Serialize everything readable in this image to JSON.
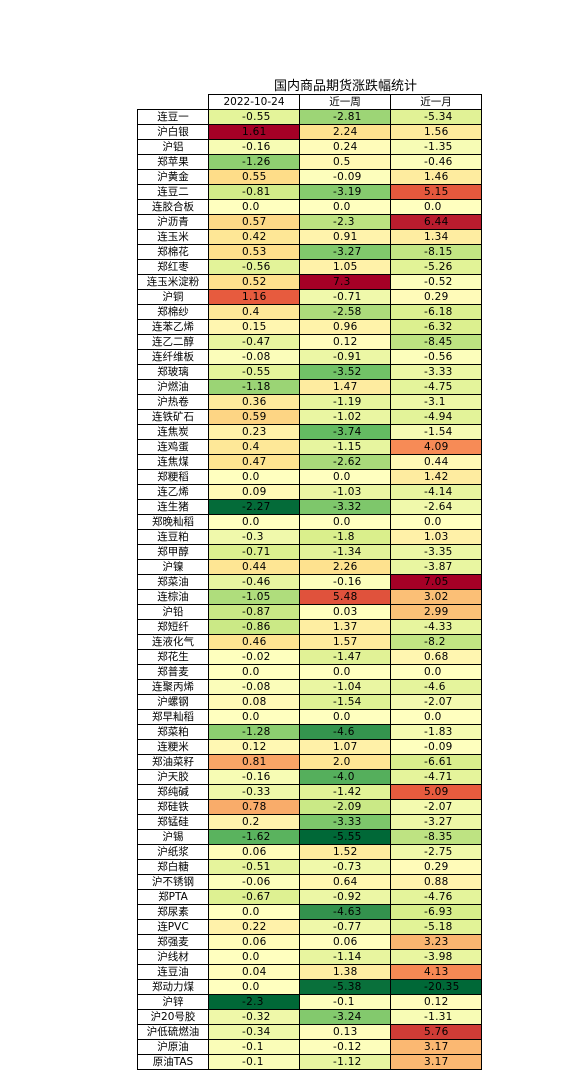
{
  "chart_data": {
    "type": "heatmap",
    "title": "国内商品期货涨跌幅统计",
    "columns": [
      "2022-10-24",
      "近一周",
      "近一月"
    ],
    "rows": [
      {
        "name": "连豆一",
        "values": [
          "-0.55",
          "-2.81",
          "-5.34"
        ]
      },
      {
        "name": "沪白银",
        "values": [
          "1.61",
          "2.24",
          "1.56"
        ]
      },
      {
        "name": "沪铝",
        "values": [
          "-0.16",
          "0.24",
          "-1.35"
        ]
      },
      {
        "name": "郑苹果",
        "values": [
          "-1.26",
          "0.5",
          "-0.46"
        ]
      },
      {
        "name": "沪黄金",
        "values": [
          "0.55",
          "-0.09",
          "1.46"
        ]
      },
      {
        "name": "连豆二",
        "values": [
          "-0.81",
          "-3.19",
          "5.15"
        ]
      },
      {
        "name": "连胶合板",
        "values": [
          "0.0",
          "0.0",
          "0.0"
        ]
      },
      {
        "name": "沪沥青",
        "values": [
          "0.57",
          "-2.3",
          "6.44"
        ]
      },
      {
        "name": "连玉米",
        "values": [
          "0.42",
          "0.91",
          "1.34"
        ]
      },
      {
        "name": "郑棉花",
        "values": [
          "0.53",
          "-3.27",
          "-8.15"
        ]
      },
      {
        "name": "郑红枣",
        "values": [
          "-0.56",
          "1.05",
          "-5.26"
        ]
      },
      {
        "name": "连玉米淀粉",
        "values": [
          "0.52",
          "7.3",
          "-0.52"
        ]
      },
      {
        "name": "沪铜",
        "values": [
          "1.16",
          "-0.71",
          "0.29"
        ]
      },
      {
        "name": "郑棉纱",
        "values": [
          "0.4",
          "-2.58",
          "-6.18"
        ]
      },
      {
        "name": "连苯乙烯",
        "values": [
          "0.15",
          "0.96",
          "-6.32"
        ]
      },
      {
        "name": "连乙二醇",
        "values": [
          "-0.47",
          "0.12",
          "-8.45"
        ]
      },
      {
        "name": "连纤维板",
        "values": [
          "-0.08",
          "-0.91",
          "-0.56"
        ]
      },
      {
        "name": "郑玻璃",
        "values": [
          "-0.55",
          "-3.52",
          "-3.33"
        ]
      },
      {
        "name": "沪燃油",
        "values": [
          "-1.18",
          "1.47",
          "-4.75"
        ]
      },
      {
        "name": "沪热卷",
        "values": [
          "0.36",
          "-1.19",
          "-3.1"
        ]
      },
      {
        "name": "连铁矿石",
        "values": [
          "0.59",
          "-1.02",
          "-4.94"
        ]
      },
      {
        "name": "连焦炭",
        "values": [
          "0.23",
          "-3.74",
          "-1.54"
        ]
      },
      {
        "name": "连鸡蛋",
        "values": [
          "0.4",
          "-1.15",
          "4.09"
        ]
      },
      {
        "name": "连焦煤",
        "values": [
          "0.47",
          "-2.62",
          "0.44"
        ]
      },
      {
        "name": "郑粳稻",
        "values": [
          "0.0",
          "0.0",
          "1.42"
        ]
      },
      {
        "name": "连乙烯",
        "values": [
          "0.09",
          "-1.03",
          "-4.14"
        ]
      },
      {
        "name": "连生猪",
        "values": [
          "-2.27",
          "-3.32",
          "-2.64"
        ]
      },
      {
        "name": "郑晚籼稻",
        "values": [
          "0.0",
          "0.0",
          "0.0"
        ]
      },
      {
        "name": "连豆粕",
        "values": [
          "-0.3",
          "-1.8",
          "1.03"
        ]
      },
      {
        "name": "郑甲醇",
        "values": [
          "-0.71",
          "-1.34",
          "-3.35"
        ]
      },
      {
        "name": "沪镍",
        "values": [
          "0.44",
          "2.26",
          "-3.87"
        ]
      },
      {
        "name": "郑菜油",
        "values": [
          "-0.46",
          "-0.16",
          "7.05"
        ]
      },
      {
        "name": "连棕油",
        "values": [
          "-1.05",
          "5.48",
          "3.02"
        ]
      },
      {
        "name": "沪铅",
        "values": [
          "-0.87",
          "0.03",
          "2.99"
        ]
      },
      {
        "name": "郑短纤",
        "values": [
          "-0.86",
          "1.37",
          "-4.33"
        ]
      },
      {
        "name": "连液化气",
        "values": [
          "0.46",
          "1.57",
          "-8.2"
        ]
      },
      {
        "name": "郑花生",
        "values": [
          "-0.02",
          "-1.47",
          "0.68"
        ]
      },
      {
        "name": "郑普麦",
        "values": [
          "0.0",
          "0.0",
          "0.0"
        ]
      },
      {
        "name": "连聚丙烯",
        "values": [
          "-0.08",
          "-1.04",
          "-4.6"
        ]
      },
      {
        "name": "沪螺钢",
        "values": [
          "0.08",
          "-1.54",
          "-2.07"
        ]
      },
      {
        "name": "郑早籼稻",
        "values": [
          "0.0",
          "0.0",
          "0.0"
        ]
      },
      {
        "name": "郑菜粕",
        "values": [
          "-1.28",
          "-4.6",
          "-1.83"
        ]
      },
      {
        "name": "连粳米",
        "values": [
          "0.12",
          "1.07",
          "-0.09"
        ]
      },
      {
        "name": "郑油菜籽",
        "values": [
          "0.81",
          "2.0",
          "-6.61"
        ]
      },
      {
        "name": "沪天胶",
        "values": [
          "-0.16",
          "-4.0",
          "-4.71"
        ]
      },
      {
        "name": "郑纯碱",
        "values": [
          "-0.33",
          "-1.42",
          "5.09"
        ]
      },
      {
        "name": "郑硅铁",
        "values": [
          "0.78",
          "-2.09",
          "-2.07"
        ]
      },
      {
        "name": "郑锰硅",
        "values": [
          "0.2",
          "-3.33",
          "-3.27"
        ]
      },
      {
        "name": "沪锡",
        "values": [
          "-1.62",
          "-5.55",
          "-8.35"
        ]
      },
      {
        "name": "沪纸浆",
        "values": [
          "0.06",
          "1.52",
          "-2.75"
        ]
      },
      {
        "name": "郑白糖",
        "values": [
          "-0.51",
          "-0.73",
          "0.29"
        ]
      },
      {
        "name": "沪不锈钢",
        "values": [
          "-0.06",
          "0.64",
          "0.88"
        ]
      },
      {
        "name": "郑PTA",
        "values": [
          "-0.67",
          "-0.92",
          "-4.76"
        ]
      },
      {
        "name": "郑尿素",
        "values": [
          "0.0",
          "-4.63",
          "-6.93"
        ]
      },
      {
        "name": "连PVC",
        "values": [
          "0.22",
          "-0.77",
          "-5.18"
        ]
      },
      {
        "name": "郑强麦",
        "values": [
          "0.06",
          "0.06",
          "3.23"
        ]
      },
      {
        "name": "沪线材",
        "values": [
          "0.0",
          "-1.14",
          "-3.98"
        ]
      },
      {
        "name": "连豆油",
        "values": [
          "0.04",
          "1.38",
          "4.13"
        ]
      },
      {
        "name": "郑动力煤",
        "values": [
          "0.0",
          "-5.38",
          "-20.35"
        ]
      },
      {
        "name": "沪锌",
        "values": [
          "-2.3",
          "-0.1",
          "0.12"
        ]
      },
      {
        "name": "沪20号胶",
        "values": [
          "-0.32",
          "-3.24",
          "-1.31"
        ]
      },
      {
        "name": "沪低硫燃油",
        "values": [
          "-0.34",
          "0.13",
          "5.76"
        ]
      },
      {
        "name": "沪原油",
        "values": [
          "-0.1",
          "-0.12",
          "3.17"
        ]
      },
      {
        "name": "原油TAS",
        "values": [
          "-0.1",
          "-1.12",
          "3.17"
        ]
      }
    ],
    "colormap": {
      "neg_strong": "#006837",
      "neg_mid": "#66bd63",
      "neg_light": "#d9ef8b",
      "neutral": "#ffffbf",
      "pos_light": "#fee08b",
      "pos_mid": "#f46d43",
      "pos_strong": "#a50026"
    }
  }
}
